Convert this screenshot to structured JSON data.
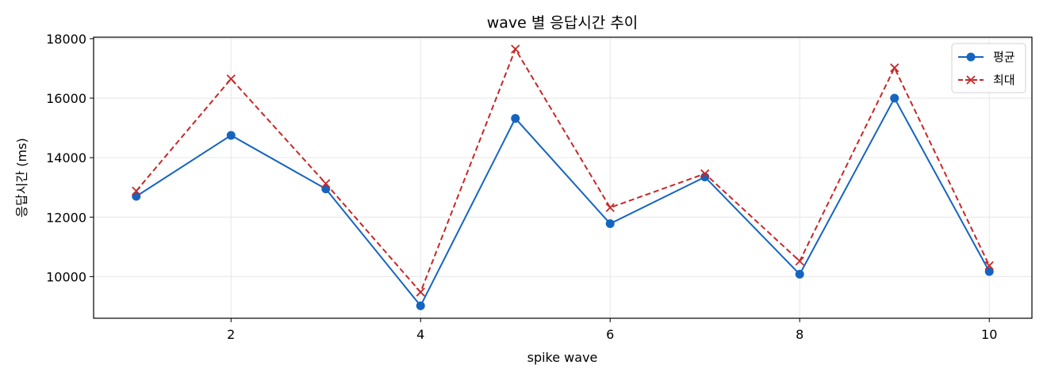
{
  "chart_data": {
    "type": "line",
    "title": "wave 별 응답시간 추이",
    "xlabel": "spike wave",
    "ylabel": "응답시간 (ms)",
    "x": [
      1,
      2,
      3,
      4,
      5,
      6,
      7,
      8,
      9,
      10
    ],
    "xlim": [
      0.55,
      10.45
    ],
    "ylim": [
      8600,
      18050
    ],
    "xticks": [
      2,
      4,
      6,
      8,
      10
    ],
    "yticks": [
      10000,
      12000,
      14000,
      16000,
      18000
    ],
    "grid": true,
    "legend_position": "top-right",
    "series": [
      {
        "name": "평균",
        "color": "#1565c0",
        "marker": "circle",
        "line_style": "solid",
        "values": [
          12700,
          14750,
          12950,
          9020,
          15320,
          11780,
          13350,
          10080,
          16000,
          10170
        ]
      },
      {
        "name": "최대",
        "color": "#c62828",
        "marker": "x",
        "line_style": "dashed",
        "values": [
          12880,
          16650,
          13130,
          9480,
          17650,
          12320,
          13460,
          10520,
          17020,
          10370
        ]
      }
    ]
  }
}
